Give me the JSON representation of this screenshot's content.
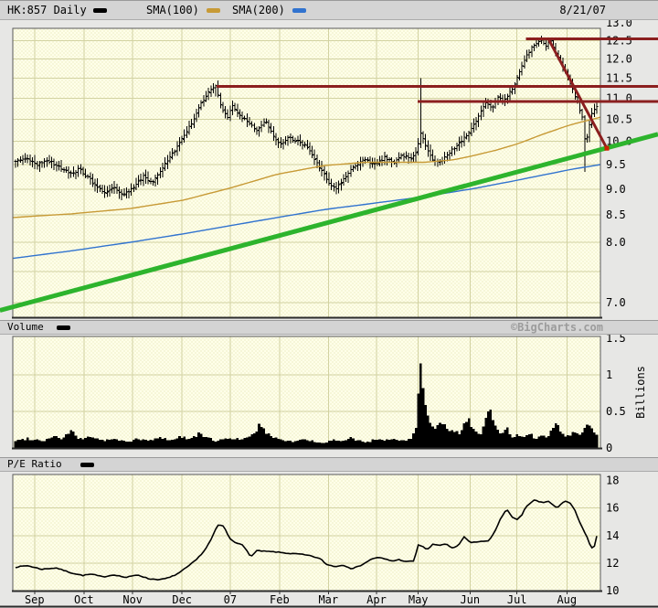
{
  "header": {
    "symbol": "HK:857 Daily",
    "sma100": "SMA(100)",
    "sma200": "SMA(200)",
    "date": "8/21/07"
  },
  "volume_header": {
    "title": "Volume",
    "watermark": "©BigCharts.com"
  },
  "pe_header": {
    "title": "P/E Ratio"
  },
  "months": [
    "Sep",
    "Oct",
    "Nov",
    "Dec",
    "07",
    "Feb",
    "Mar",
    "Apr",
    "May",
    "Jun",
    "Jul",
    "Aug"
  ],
  "colors": {
    "page_bg": "#e7e7e5",
    "header_bg": "#d4d4d4",
    "plot_bg": "#ffffe9",
    "hatch": "#ededc8",
    "grid": "#d2d2a2",
    "ink": "#000000",
    "sma100": "#c79a36",
    "sma200": "#3173cf",
    "trend_green": "#2db42d",
    "trend_red": "#8b1f1f",
    "marker_red": "#cc2200",
    "watermark": "#9c9c9c",
    "border": "#5a5a5a"
  },
  "chart_data": [
    {
      "type": "bar",
      "subtype": "ohlc-daily-price",
      "title": "HK:857 Daily",
      "scale": "log",
      "ylim": [
        7,
        13
      ],
      "yticks": [
        13,
        12.5,
        12,
        11.5,
        11,
        10.5,
        10,
        9.5,
        9,
        8.5,
        8,
        7
      ],
      "ytick_labels": [
        "13.0",
        "12.5",
        "12.0",
        "11.5",
        "11.0",
        "10.5",
        "10.0",
        "9.5",
        "9.0",
        "8.5",
        "8.0",
        "7.0"
      ],
      "grid_values": [
        12.5,
        12,
        11.5,
        11,
        10.5,
        10,
        9.5,
        9,
        8.5,
        8,
        7.5,
        7
      ],
      "month_fracs": [
        0.037,
        0.121,
        0.204,
        0.288,
        0.37,
        0.454,
        0.537,
        0.619,
        0.69,
        0.778,
        0.858,
        0.943
      ],
      "n_bars": 242,
      "seed": 857,
      "close_keyframes": {
        "x": [
          0,
          0.02,
          0.037,
          0.055,
          0.075,
          0.095,
          0.11,
          0.123,
          0.14,
          0.155,
          0.17,
          0.185,
          0.205,
          0.22,
          0.235,
          0.25,
          0.265,
          0.28,
          0.291,
          0.305,
          0.32,
          0.335,
          0.345,
          0.355,
          0.365,
          0.372,
          0.385,
          0.4,
          0.415,
          0.43,
          0.445,
          0.456,
          0.47,
          0.485,
          0.5,
          0.515,
          0.53,
          0.538,
          0.55,
          0.565,
          0.58,
          0.6,
          0.619,
          0.635,
          0.65,
          0.665,
          0.68,
          0.69,
          0.697,
          0.707,
          0.72,
          0.735,
          0.75,
          0.765,
          0.778,
          0.79,
          0.8,
          0.81,
          0.82,
          0.83,
          0.84,
          0.85,
          0.857,
          0.868,
          0.878,
          0.888,
          0.898,
          0.906,
          0.912,
          0.92,
          0.928,
          0.936,
          0.943,
          0.952,
          0.96,
          0.968,
          0.975,
          0.981,
          0.987,
          0.993,
          1.0
        ],
        "y": [
          9.55,
          9.65,
          9.5,
          9.6,
          9.45,
          9.3,
          9.4,
          9.25,
          9.05,
          8.9,
          9.05,
          8.88,
          9.05,
          9.25,
          9.1,
          9.4,
          9.65,
          9.9,
          10.15,
          10.45,
          10.9,
          11.2,
          11.3,
          10.75,
          10.55,
          10.85,
          10.6,
          10.45,
          10.25,
          10.45,
          10.1,
          9.95,
          10.1,
          10.0,
          9.9,
          9.6,
          9.3,
          9.15,
          9.0,
          9.2,
          9.45,
          9.6,
          9.5,
          9.65,
          9.55,
          9.7,
          9.62,
          9.75,
          10.2,
          9.85,
          9.55,
          9.6,
          9.8,
          10.0,
          10.15,
          10.4,
          10.7,
          10.9,
          10.75,
          11.05,
          10.9,
          11.15,
          11.3,
          11.7,
          12.05,
          12.3,
          12.45,
          12.55,
          12.3,
          12.55,
          12.2,
          12.0,
          11.75,
          11.45,
          11.15,
          10.85,
          10.55,
          9.9,
          10.35,
          10.7,
          10.8
        ]
      },
      "special_bars": [
        {
          "x": 0.345,
          "high": 11.34,
          "low": 11.05
        },
        {
          "x": 0.697,
          "high": 11.5,
          "low": 9.85
        },
        {
          "x": 0.981,
          "high": 10.6,
          "low": 9.35
        }
      ],
      "series": [
        {
          "name": "SMA(100)",
          "color_key": "sma100",
          "keyframes": {
            "x": [
              0,
              0.1,
              0.2,
              0.29,
              0.37,
              0.45,
              0.53,
              0.6,
              0.65,
              0.7,
              0.75,
              0.78,
              0.82,
              0.86,
              0.9,
              0.95,
              1.0
            ],
            "y": [
              8.45,
              8.52,
              8.62,
              8.78,
              9.02,
              9.3,
              9.48,
              9.55,
              9.55,
              9.55,
              9.6,
              9.68,
              9.8,
              9.95,
              10.15,
              10.38,
              10.55
            ]
          }
        },
        {
          "name": "SMA(200)",
          "color_key": "sma200",
          "keyframes": {
            "x": [
              0,
              0.1,
              0.2,
              0.29,
              0.37,
              0.45,
              0.53,
              0.62,
              0.7,
              0.78,
              0.86,
              0.95,
              1.0
            ],
            "y": [
              7.72,
              7.85,
              8.0,
              8.15,
              8.3,
              8.45,
              8.6,
              8.73,
              8.85,
              9.0,
              9.18,
              9.4,
              9.5
            ]
          }
        }
      ],
      "annotations": {
        "uptrend_line": {
          "x1": -0.022,
          "price1": 6.88,
          "x2": 1.098,
          "price2": 10.16,
          "width": 5
        },
        "resistance_lines": [
          {
            "price": 12.55,
            "x1": 0.873,
            "x2": 1.098,
            "width": 3
          },
          {
            "price": 11.3,
            "x1": 0.347,
            "x2": 1.098,
            "width": 3
          },
          {
            "price": 10.92,
            "x1": 0.689,
            "x2": 1.098,
            "width": 3
          }
        ],
        "downtrend_line": {
          "x1": 0.9114,
          "price1": 12.55,
          "x2": 1.0109,
          "price2": 9.85,
          "width": 3,
          "end_marker": true
        }
      }
    },
    {
      "type": "area",
      "subtype": "volume",
      "title": "Volume",
      "unit": "Billions",
      "scale": "linear",
      "ylim": [
        0,
        1.5
      ],
      "yticks": [
        1.5,
        1,
        0.5,
        0
      ],
      "ytick_labels": [
        "1.5",
        "1",
        "0.5",
        "0"
      ],
      "grid_values": [
        1,
        0.5
      ],
      "seed": 99,
      "keyframes": {
        "x": [
          0,
          0.02,
          0.05,
          0.065,
          0.08,
          0.095,
          0.11,
          0.13,
          0.15,
          0.17,
          0.19,
          0.21,
          0.23,
          0.25,
          0.27,
          0.285,
          0.3,
          0.315,
          0.33,
          0.345,
          0.36,
          0.375,
          0.39,
          0.405,
          0.42,
          0.435,
          0.45,
          0.465,
          0.48,
          0.5,
          0.515,
          0.53,
          0.545,
          0.56,
          0.575,
          0.59,
          0.605,
          0.62,
          0.635,
          0.65,
          0.665,
          0.68,
          0.69,
          0.695,
          0.7,
          0.71,
          0.72,
          0.735,
          0.75,
          0.765,
          0.778,
          0.79,
          0.8,
          0.815,
          0.825,
          0.835,
          0.845,
          0.855,
          0.865,
          0.875,
          0.885,
          0.895,
          0.905,
          0.915,
          0.93,
          0.94,
          0.95,
          0.96,
          0.97,
          0.982,
          0.99,
          1.0
        ],
        "y": [
          0.1,
          0.13,
          0.1,
          0.17,
          0.12,
          0.23,
          0.12,
          0.16,
          0.1,
          0.12,
          0.09,
          0.12,
          0.1,
          0.14,
          0.11,
          0.16,
          0.12,
          0.19,
          0.14,
          0.1,
          0.12,
          0.14,
          0.11,
          0.15,
          0.31,
          0.18,
          0.14,
          0.1,
          0.09,
          0.12,
          0.08,
          0.06,
          0.11,
          0.08,
          0.14,
          0.1,
          0.08,
          0.12,
          0.09,
          0.14,
          0.1,
          0.12,
          0.3,
          1.22,
          0.85,
          0.45,
          0.3,
          0.32,
          0.22,
          0.2,
          0.44,
          0.22,
          0.18,
          0.56,
          0.28,
          0.18,
          0.27,
          0.15,
          0.17,
          0.14,
          0.18,
          0.14,
          0.16,
          0.14,
          0.38,
          0.2,
          0.16,
          0.22,
          0.18,
          0.31,
          0.28,
          0.18
        ]
      }
    },
    {
      "type": "line",
      "subtype": "pe-ratio",
      "title": "P/E Ratio",
      "scale": "linear",
      "ylim": [
        10,
        18
      ],
      "yticks": [
        18,
        16,
        14,
        12,
        10
      ],
      "ytick_labels": [
        "18",
        "16",
        "14",
        "12",
        "10"
      ],
      "grid_values": [
        16,
        14,
        12
      ],
      "seed": 7,
      "keyframes": {
        "x": [
          0,
          0.02,
          0.045,
          0.07,
          0.095,
          0.115,
          0.13,
          0.15,
          0.17,
          0.19,
          0.21,
          0.23,
          0.25,
          0.265,
          0.28,
          0.295,
          0.31,
          0.325,
          0.335,
          0.348,
          0.358,
          0.368,
          0.378,
          0.388,
          0.398,
          0.405,
          0.415,
          0.43,
          0.45,
          0.47,
          0.49,
          0.51,
          0.525,
          0.535,
          0.55,
          0.565,
          0.578,
          0.59,
          0.605,
          0.615,
          0.625,
          0.635,
          0.648,
          0.66,
          0.672,
          0.685,
          0.693,
          0.7,
          0.708,
          0.718,
          0.73,
          0.74,
          0.752,
          0.762,
          0.772,
          0.782,
          0.8,
          0.815,
          0.825,
          0.835,
          0.845,
          0.855,
          0.862,
          0.87,
          0.878,
          0.885,
          0.893,
          0.9,
          0.91,
          0.918,
          0.925,
          0.932,
          0.94,
          0.948,
          0.955,
          0.963,
          0.97,
          0.977,
          0.983,
          0.99,
          0.995,
          1.0
        ],
        "y": [
          11.7,
          11.82,
          11.55,
          11.65,
          11.3,
          11.1,
          11.2,
          11.0,
          11.15,
          10.95,
          11.15,
          10.85,
          10.8,
          10.95,
          11.25,
          11.7,
          12.2,
          12.9,
          13.6,
          14.75,
          14.7,
          13.8,
          13.5,
          13.4,
          12.9,
          12.45,
          12.9,
          12.85,
          12.8,
          12.7,
          12.65,
          12.5,
          12.3,
          11.9,
          11.75,
          11.85,
          11.6,
          11.75,
          12.1,
          12.35,
          12.4,
          12.3,
          12.15,
          12.25,
          12.1,
          12.15,
          13.3,
          13.25,
          12.95,
          13.35,
          13.3,
          13.4,
          13.05,
          13.3,
          13.9,
          13.5,
          13.55,
          13.65,
          14.3,
          15.3,
          15.9,
          15.3,
          15.15,
          15.4,
          16.1,
          16.3,
          16.6,
          16.45,
          16.4,
          16.5,
          16.2,
          16.0,
          16.35,
          16.5,
          16.35,
          15.8,
          15.0,
          14.4,
          13.9,
          13.15,
          13.05,
          13.95
        ]
      }
    }
  ]
}
